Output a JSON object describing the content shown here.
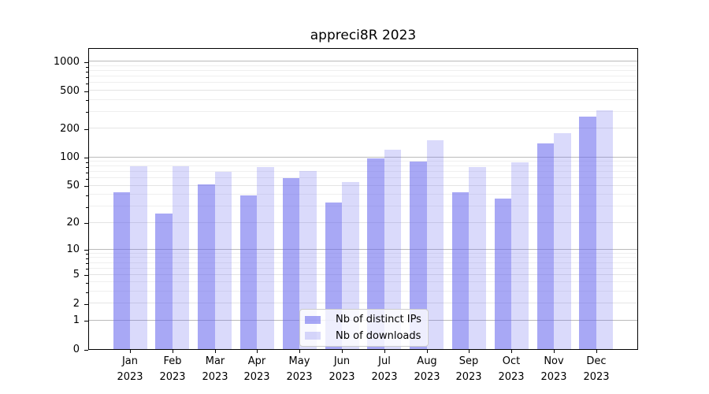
{
  "chart_data": {
    "type": "bar",
    "title": "appreci8R 2023",
    "categories": [
      "Jan",
      "Feb",
      "Mar",
      "Apr",
      "May",
      "Jun",
      "Jul",
      "Aug",
      "Sep",
      "Oct",
      "Nov",
      "Dec"
    ],
    "x_tick_year": "2023",
    "series": [
      {
        "name": "Nb of distinct IPs",
        "values": [
          42,
          25,
          51,
          39,
          60,
          33,
          97,
          90,
          42,
          36,
          140,
          265
        ],
        "color_rendered": "#a9a9f5",
        "fill": "rgba(102,102,238,0.57)"
      },
      {
        "name": "Nb of downloads",
        "values": [
          80,
          80,
          70,
          79,
          71,
          54,
          119,
          150,
          78,
          88,
          178,
          310
        ],
        "color_rendered": "#dcdcfa",
        "fill": "rgba(102,102,238,0.24)"
      }
    ],
    "yscale": "log1p",
    "ylim": [
      0,
      1385
    ],
    "yticks": [
      0,
      1,
      2,
      5,
      10,
      20,
      50,
      100,
      200,
      500,
      1000
    ],
    "minor_gridlines": [
      3,
      4,
      6,
      7,
      8,
      9,
      30,
      40,
      60,
      70,
      80,
      90,
      300,
      400,
      600,
      700,
      800,
      900
    ],
    "grid": true,
    "legend_position": "lower center",
    "colors": {
      "grid_major": "#bbbbbb",
      "grid_mid": "#e4e4e4",
      "grid_minor": "#efefef",
      "axis": "#000000",
      "text": "#000000",
      "legend_bg": "rgba(255,255,255,0.8)",
      "legend_border": "#cccccc"
    }
  }
}
